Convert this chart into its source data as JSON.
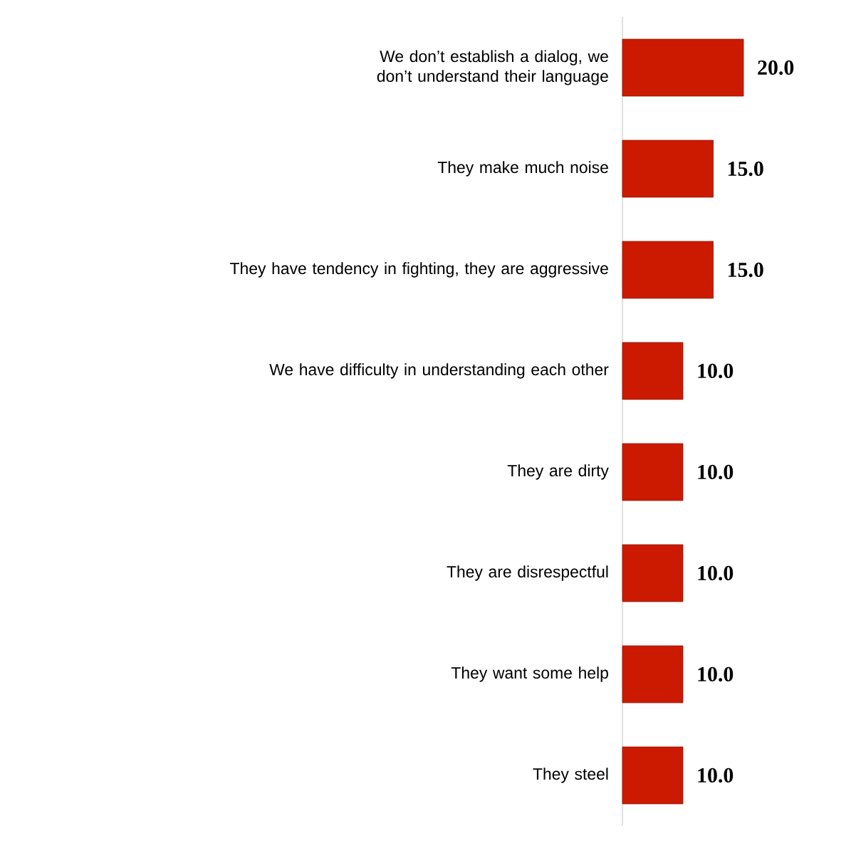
{
  "chart_data": {
    "type": "bar",
    "orientation": "horizontal",
    "categories": [
      "We don’t establish a dialog, we don’t understand their language",
      "They make much noise",
      "They have tendency in fighting, they are aggressive",
      "We have difficulty in understanding each other",
      "They are dirty",
      "They are disrespectful",
      "They want some help",
      "They steel"
    ],
    "values": [
      20,
      15,
      15,
      10,
      10,
      10,
      10,
      10
    ],
    "value_labels": [
      "20.0",
      "15.0",
      "15.0",
      "10.0",
      "10.0",
      "10.0",
      "10.0",
      "10.0"
    ],
    "color": "#cc1a00"
  }
}
